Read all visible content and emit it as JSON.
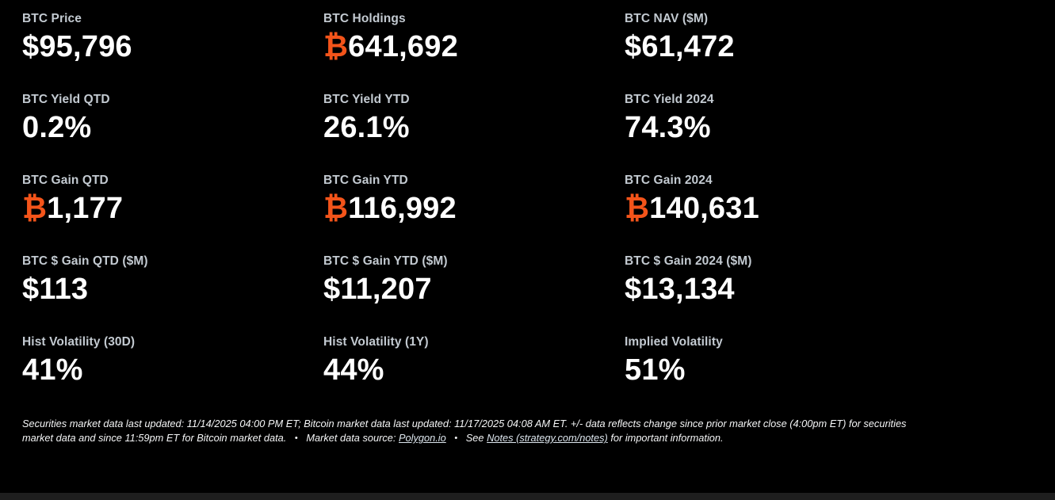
{
  "colors": {
    "background": "#000000",
    "label": "#c3cad1",
    "value": "#ffffff",
    "bitcoin_accent": "#f4541a",
    "bottom_bar": "#1e1e1e"
  },
  "metrics": [
    {
      "label": "BTC Price",
      "prefix": "",
      "value": "$95,796"
    },
    {
      "label": "BTC Holdings",
      "prefix": "₿",
      "value": "641,692"
    },
    {
      "label": "BTC NAV ($M)",
      "prefix": "",
      "value": "$61,472"
    },
    {
      "label": "BTC Yield QTD",
      "prefix": "",
      "value": "0.2%"
    },
    {
      "label": "BTC Yield YTD",
      "prefix": "",
      "value": "26.1%"
    },
    {
      "label": "BTC Yield 2024",
      "prefix": "",
      "value": "74.3%"
    },
    {
      "label": "BTC Gain QTD",
      "prefix": "₿",
      "value": "1,177"
    },
    {
      "label": "BTC Gain YTD",
      "prefix": "₿",
      "value": "116,992"
    },
    {
      "label": "BTC Gain 2024",
      "prefix": "₿",
      "value": "140,631"
    },
    {
      "label": "BTC $ Gain QTD ($M)",
      "prefix": "",
      "value": "$113"
    },
    {
      "label": "BTC $ Gain YTD ($M)",
      "prefix": "",
      "value": "$11,207"
    },
    {
      "label": "BTC $ Gain 2024 ($M)",
      "prefix": "",
      "value": "$13,134"
    },
    {
      "label": "Hist Volatility (30D)",
      "prefix": "",
      "value": "41%"
    },
    {
      "label": "Hist Volatility (1Y)",
      "prefix": "",
      "value": "44%"
    },
    {
      "label": "Implied Volatility",
      "prefix": "",
      "value": "51%"
    }
  ],
  "footer": {
    "text_before": "Securities market data last updated: 11/14/2025 04:00 PM ET; Bitcoin market data last updated: 11/17/2025 04:08 AM ET. +/- data reflects change since prior market close (4:00pm ET) for securities market data and since 11:59pm ET for Bitcoin market data.",
    "bullet": "•",
    "source_label": "Market data source:",
    "source_link": "Polygon.io",
    "see_label": "See",
    "notes_link": "Notes (strategy.com/notes)",
    "see_suffix": "for important information."
  }
}
